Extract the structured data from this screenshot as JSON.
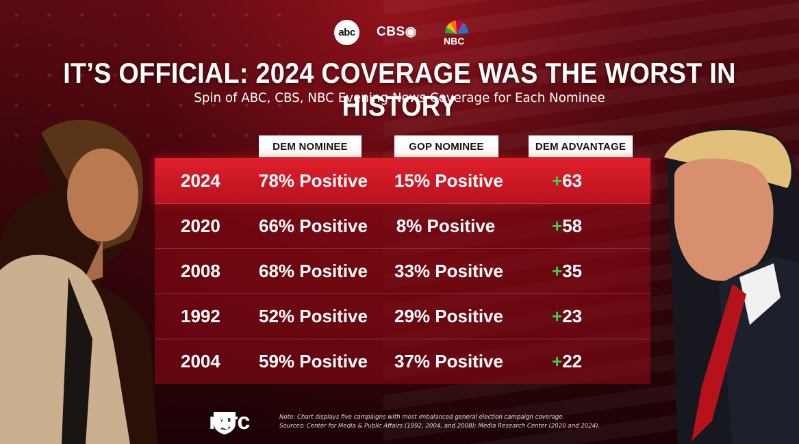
{
  "logos": {
    "abc": "abc",
    "cbs": "CBS",
    "nbc": "NBC"
  },
  "headline": "IT’S OFFICIAL: 2024 COVERAGE WAS THE WORST IN HISTORY",
  "subtitle": "Spin of ABC, CBS, NBC Evening News Coverage for Each Nominee",
  "colors": {
    "highlight_row": "#d11a27",
    "row_bg": "#7a0a14",
    "plus_green": "#37d047",
    "header_bg": "#ffffff"
  },
  "chart_data": {
    "type": "table",
    "columns": [
      "",
      "DEM NOMINEE",
      "GOP NOMINEE",
      "DEM ADVANTAGE"
    ],
    "rows": [
      {
        "year": "2024",
        "dem": "78% Positive",
        "gop": "15% Positive",
        "adv_sign": "+",
        "adv": "63",
        "highlight": true
      },
      {
        "year": "2020",
        "dem": "66% Positive",
        "gop": "8% Positive",
        "adv_sign": "+",
        "adv": "58",
        "highlight": false
      },
      {
        "year": "2008",
        "dem": "68% Positive",
        "gop": "33% Positive",
        "adv_sign": "+",
        "adv": "35",
        "highlight": false
      },
      {
        "year": "1992",
        "dem": "52% Positive",
        "gop": "29% Positive",
        "adv_sign": "+",
        "adv": "23",
        "highlight": false
      },
      {
        "year": "2004",
        "dem": "59% Positive",
        "gop": "37% Positive",
        "adv_sign": "+",
        "adv": "22",
        "highlight": false
      }
    ]
  },
  "footer": {
    "brand": "mrc",
    "note_line1": "Note: Chart displays five campaigns with most imbalanced general election campaign coverage.",
    "note_line2": "Sources: Center for Media & Public Affairs (1992, 2004, and 2008); Media Research Center (2020 and 2024)."
  }
}
